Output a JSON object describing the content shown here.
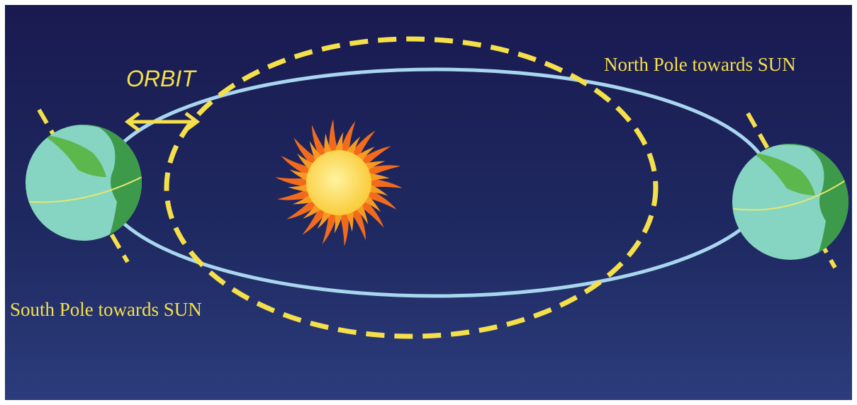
{
  "labels": {
    "orbit": "ORBIT",
    "north": "North Pole towards SUN",
    "south": "South Pole towards SUN"
  }
}
